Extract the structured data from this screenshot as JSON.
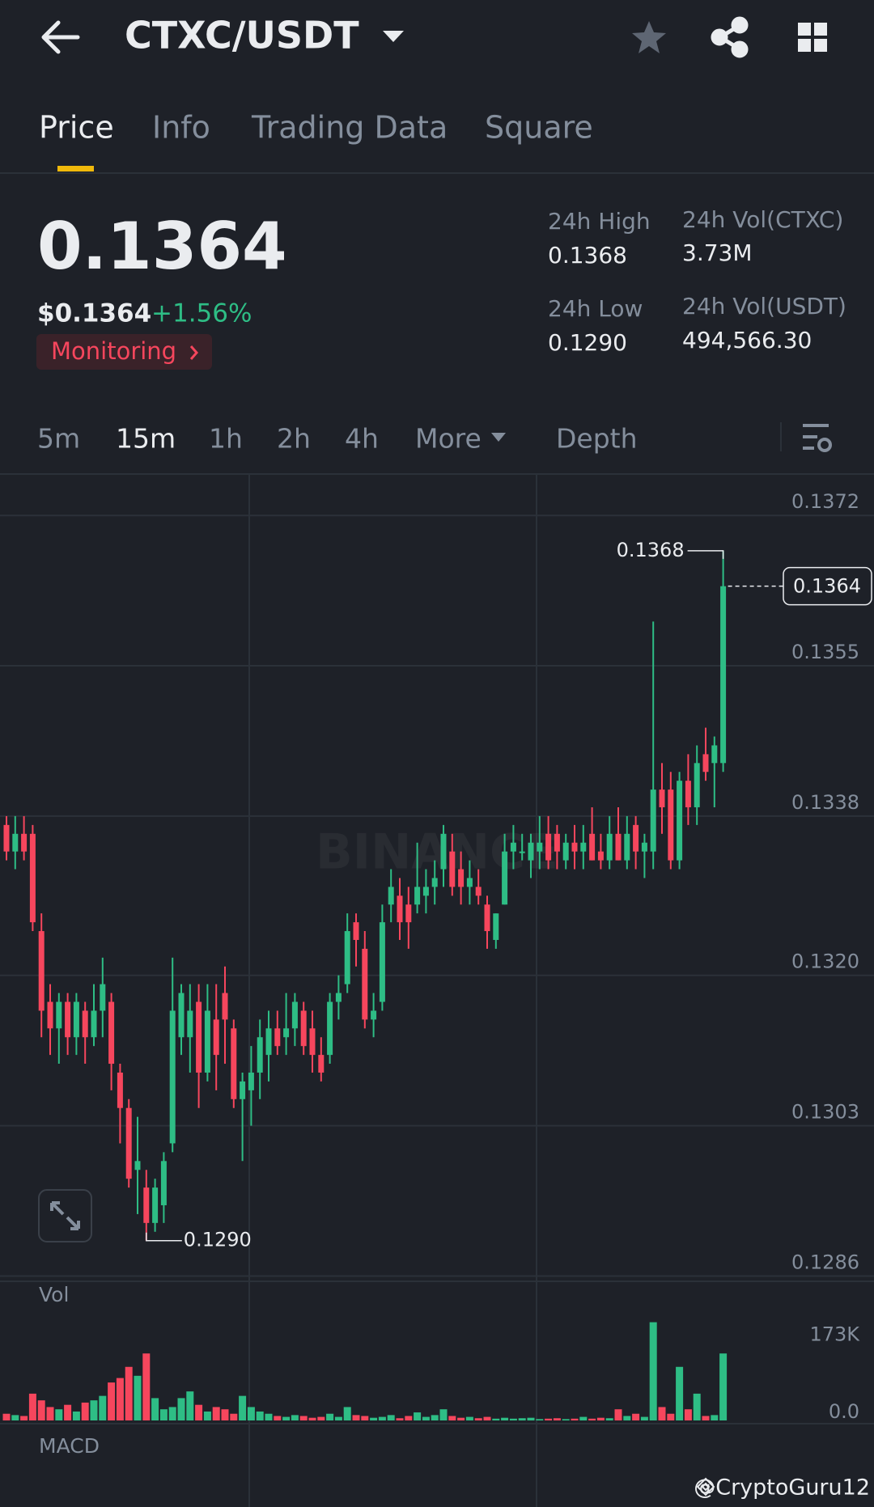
{
  "header": {
    "pair": "CTXC/USDT"
  },
  "tabs": [
    "Price",
    "Info",
    "Trading Data",
    "Square"
  ],
  "price": {
    "last": "0.1364",
    "usd": "$0.1364",
    "change": "+1.56%",
    "tag": "Monitoring"
  },
  "stats": [
    {
      "label": "24h High",
      "value": "0.1368"
    },
    {
      "label": "24h Vol(CTXC)",
      "value": "3.73M"
    },
    {
      "label": "24h Low",
      "value": "0.1290"
    },
    {
      "label": "24h Vol(USDT)",
      "value": "494,566.30"
    }
  ],
  "intervals": [
    "5m",
    "15m",
    "1h",
    "2h",
    "4h",
    "More",
    "Depth"
  ],
  "chart_data": {
    "type": "candlestick",
    "watermark": "BINANCE",
    "ylim": [
      0.12854,
      0.13765
    ],
    "yticks": [
      0.1372,
      0.1355,
      0.1338,
      {
        "value": 0.132,
        "label": "0.1320"
      },
      0.1303,
      0.1286
    ],
    "high_label": "0.1368",
    "low_label": "0.1290",
    "last_label": "0.1364",
    "candles": [
      [
        0.1337,
        0.1338,
        0.1333,
        0.1334
      ],
      [
        0.1334,
        0.1338,
        0.1332,
        0.1336
      ],
      [
        0.1336,
        0.1338,
        0.1333,
        0.1334
      ],
      [
        0.1336,
        0.1337,
        0.1325,
        0.1326
      ],
      [
        0.1325,
        0.1327,
        0.1313,
        0.1316
      ],
      [
        0.1317,
        0.1319,
        0.1311,
        0.1314
      ],
      [
        0.1314,
        0.1318,
        0.131,
        0.1317
      ],
      [
        0.1317,
        0.1318,
        0.1311,
        0.1313
      ],
      [
        0.1313,
        0.1318,
        0.1311,
        0.1317
      ],
      [
        0.1316,
        0.1317,
        0.131,
        0.1313
      ],
      [
        0.1313,
        0.1319,
        0.1312,
        0.1316
      ],
      [
        0.1316,
        0.1322,
        0.1313,
        0.1319
      ],
      [
        0.1317,
        0.1318,
        0.1307,
        0.131
      ],
      [
        0.1309,
        0.131,
        0.1301,
        0.1305
      ],
      [
        0.1305,
        0.1306,
        0.1296,
        0.1297
      ],
      [
        0.1298,
        0.1304,
        0.1293,
        0.1299
      ],
      [
        0.1296,
        0.1298,
        0.129,
        0.1292
      ],
      [
        0.1292,
        0.1297,
        0.1291,
        0.1296
      ],
      [
        0.1294,
        0.13,
        0.1292,
        0.1299
      ],
      [
        0.1301,
        0.1322,
        0.13,
        0.1316
      ],
      [
        0.1313,
        0.1319,
        0.1311,
        0.1318
      ],
      [
        0.1313,
        0.1319,
        0.1309,
        0.1316
      ],
      [
        0.1317,
        0.1319,
        0.1305,
        0.1309
      ],
      [
        0.1309,
        0.1319,
        0.1308,
        0.1316
      ],
      [
        0.1315,
        0.1319,
        0.1307,
        0.1311
      ],
      [
        0.1318,
        0.1321,
        0.131,
        0.1315
      ],
      [
        0.1314,
        0.1315,
        0.1305,
        0.1306
      ],
      [
        0.1306,
        0.1309,
        0.1299,
        0.1308
      ],
      [
        0.1307,
        0.1312,
        0.1303,
        0.1309
      ],
      [
        0.1309,
        0.1315,
        0.1306,
        0.1313
      ],
      [
        0.1311,
        0.1316,
        0.1308,
        0.1314
      ],
      [
        0.1314,
        0.1316,
        0.1311,
        0.1312
      ],
      [
        0.1313,
        0.1318,
        0.1311,
        0.1314
      ],
      [
        0.1314,
        0.1318,
        0.1312,
        0.1317
      ],
      [
        0.1316,
        0.1317,
        0.1311,
        0.1312
      ],
      [
        0.1314,
        0.1316,
        0.1309,
        0.1311
      ],
      [
        0.1311,
        0.1313,
        0.1308,
        0.1309
      ],
      [
        0.1311,
        0.1318,
        0.131,
        0.1317
      ],
      [
        0.1317,
        0.132,
        0.1315,
        0.1318
      ],
      [
        0.1319,
        0.1327,
        0.1318,
        0.1325
      ],
      [
        0.1326,
        0.1327,
        0.1321,
        0.1324
      ],
      [
        0.1323,
        0.1325,
        0.1314,
        0.1315
      ],
      [
        0.1315,
        0.1318,
        0.1313,
        0.1316
      ],
      [
        0.1317,
        0.1328,
        0.1316,
        0.1326
      ],
      [
        0.1328,
        0.1332,
        0.1326,
        0.133
      ],
      [
        0.1329,
        0.1331,
        0.1324,
        0.1326
      ],
      [
        0.1328,
        0.133,
        0.1323,
        0.1326
      ],
      [
        0.1328,
        0.1335,
        0.1327,
        0.133
      ],
      [
        0.1329,
        0.1332,
        0.1327,
        0.133
      ],
      [
        0.133,
        0.1333,
        0.1328,
        0.1331
      ],
      [
        0.1332,
        0.1337,
        0.133,
        0.1336
      ],
      [
        0.1334,
        0.1336,
        0.1329,
        0.133
      ],
      [
        0.1332,
        0.1334,
        0.1328,
        0.133
      ],
      [
        0.133,
        0.1333,
        0.1328,
        0.1331
      ],
      [
        0.133,
        0.1332,
        0.1328,
        0.1329
      ],
      [
        0.1328,
        0.1329,
        0.1323,
        0.1325
      ],
      [
        0.1324,
        0.1327,
        0.1323,
        0.1327
      ],
      [
        0.1328,
        0.1336,
        0.1328,
        0.1334
      ],
      [
        0.1334,
        0.1337,
        0.1332,
        0.1335
      ],
      [
        0.1334,
        0.1336,
        0.1333,
        0.1334
      ],
      [
        0.1333,
        0.1336,
        0.1331,
        0.1335
      ],
      [
        0.1334,
        0.1338,
        0.1332,
        0.1335
      ],
      [
        0.1336,
        0.1338,
        0.1332,
        0.1333
      ],
      [
        0.1336,
        0.1337,
        0.1332,
        0.1334
      ],
      [
        0.1333,
        0.1336,
        0.1332,
        0.1335
      ],
      [
        0.1335,
        0.1337,
        0.1332,
        0.1334
      ],
      [
        0.1334,
        0.1337,
        0.1332,
        0.1335
      ],
      [
        0.1336,
        0.1339,
        0.1333,
        0.1333
      ],
      [
        0.1334,
        0.1336,
        0.1332,
        0.1333
      ],
      [
        0.1333,
        0.1338,
        0.1332,
        0.1336
      ],
      [
        0.1336,
        0.1339,
        0.1333,
        0.1333
      ],
      [
        0.1333,
        0.1338,
        0.1332,
        0.1336
      ],
      [
        0.1337,
        0.1338,
        0.1332,
        0.1334
      ],
      [
        0.1334,
        0.1336,
        0.1331,
        0.1335
      ],
      [
        0.1334,
        0.136,
        0.1332,
        0.1341
      ],
      [
        0.1341,
        0.1344,
        0.1336,
        0.1339
      ],
      [
        0.1341,
        0.1343,
        0.1332,
        0.1333
      ],
      [
        0.1333,
        0.1343,
        0.1332,
        0.1342
      ],
      [
        0.1342,
        0.1345,
        0.1337,
        0.1339
      ],
      [
        0.1339,
        0.1346,
        0.1337,
        0.1344
      ],
      [
        0.1345,
        0.1348,
        0.1342,
        0.1343
      ],
      [
        0.1344,
        0.1347,
        0.1339,
        0.1346
      ],
      [
        0.1344,
        0.1368,
        0.1343,
        0.1364
      ]
    ],
    "volume": {
      "label": "Vol",
      "ylim": [
        0,
        250000
      ],
      "yticks": [
        {
          "value": 173000,
          "label": "173K"
        },
        {
          "value": 0,
          "label": "0.0"
        }
      ],
      "values": [
        15000,
        12000,
        10000,
        60000,
        45000,
        30000,
        25000,
        35000,
        20000,
        40000,
        45000,
        55000,
        85000,
        95000,
        120000,
        100000,
        150000,
        50000,
        25000,
        30000,
        50000,
        65000,
        35000,
        20000,
        30000,
        25000,
        15000,
        55000,
        30000,
        20000,
        15000,
        10000,
        8000,
        12000,
        10000,
        6000,
        8000,
        15000,
        8000,
        30000,
        12000,
        10000,
        6000,
        8000,
        12000,
        5000,
        10000,
        18000,
        8000,
        12000,
        25000,
        10000,
        6000,
        8000,
        5000,
        8000,
        4000,
        6000,
        4000,
        5000,
        6000,
        3000,
        4000,
        5000,
        3000,
        4000,
        8000,
        4000,
        6000,
        5000,
        25000,
        10000,
        15000,
        8000,
        220000,
        30000,
        15000,
        120000,
        25000,
        60000,
        10000,
        12000,
        150000
      ]
    },
    "macd_label": "MACD",
    "colors": {
      "up": "#2ebd85",
      "down": "#f6465d"
    }
  },
  "credit": "@CryptoGuru12"
}
